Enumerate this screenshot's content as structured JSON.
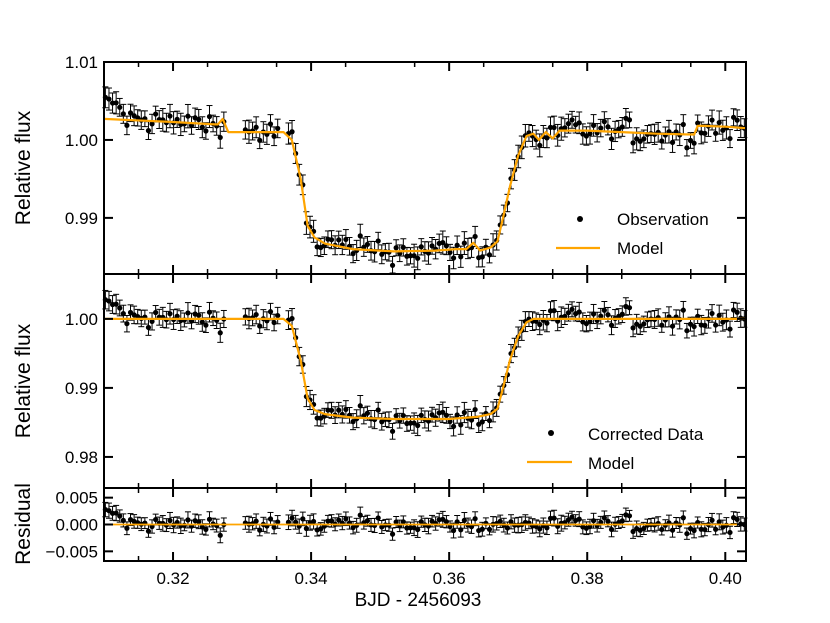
{
  "x_axis": {
    "label": "BJD - 2456093",
    "range": [
      0.31,
      0.403
    ],
    "ticks": [
      0.32,
      0.34,
      0.36,
      0.38,
      0.4
    ],
    "tick_labels": [
      "0.32",
      "0.34",
      "0.36",
      "0.38",
      "0.40"
    ]
  },
  "chart_data": [
    {
      "type": "scatter",
      "panel": "top",
      "ylabel": "Relative flux",
      "ylim": [
        0.9828,
        1.01
      ],
      "yticks": [
        0.99,
        1.0,
        1.01
      ],
      "ytick_labels": [
        "0.99",
        "1.00",
        "1.01"
      ],
      "legend": [
        "Observation",
        "Model"
      ],
      "legend_position": "lower-right",
      "model": {
        "name": "Model",
        "color": "#FFA500",
        "x": [
          0.31,
          0.32,
          0.326,
          0.3265,
          0.3272,
          0.328,
          0.33,
          0.336,
          0.3372,
          0.3385,
          0.3395,
          0.3405,
          0.342,
          0.346,
          0.352,
          0.358,
          0.361,
          0.3625,
          0.3635,
          0.3645,
          0.366,
          0.367,
          0.3678,
          0.3688,
          0.37,
          0.3712,
          0.3722,
          0.373,
          0.374,
          0.375,
          0.376,
          0.38,
          0.385,
          0.39,
          0.395,
          0.3955,
          0.396,
          0.397,
          0.4,
          0.403
        ],
        "y": [
          1.0027,
          1.0023,
          1.002,
          1.002,
          1.0027,
          1.001,
          1.001,
          1.001,
          1.0,
          0.995,
          0.989,
          0.9875,
          0.9867,
          0.986,
          0.9857,
          0.9858,
          0.986,
          0.986,
          0.9868,
          0.9858,
          0.9862,
          0.987,
          0.99,
          0.994,
          0.998,
          1.0005,
          1.0008,
          1.0,
          1.001,
          1.0002,
          1.0012,
          1.0012,
          1.001,
          1.0008,
          1.0007,
          1.0007,
          1.0018,
          1.0018,
          1.0017,
          1.0015
        ]
      }
    },
    {
      "type": "scatter",
      "panel": "middle",
      "ylabel": "Relative flux",
      "ylim": [
        0.9755,
        1.0065
      ],
      "yticks": [
        0.98,
        0.99,
        1.0
      ],
      "ytick_labels": [
        "0.98",
        "0.99",
        "1.00"
      ],
      "legend": [
        "Corrected Data",
        "Model"
      ],
      "legend_position": "lower-right",
      "model": {
        "name": "Model",
        "color": "#FFA500",
        "x": [
          0.31,
          0.32,
          0.336,
          0.3372,
          0.3385,
          0.3395,
          0.3405,
          0.342,
          0.346,
          0.352,
          0.36,
          0.364,
          0.366,
          0.367,
          0.3678,
          0.3688,
          0.37,
          0.3712,
          0.3722,
          0.38,
          0.39,
          0.403
        ],
        "y": [
          1.0,
          1.0,
          1.0,
          0.999,
          0.994,
          0.9885,
          0.9868,
          0.9862,
          0.9857,
          0.9855,
          0.9855,
          0.9858,
          0.9862,
          0.987,
          0.99,
          0.994,
          0.9975,
          0.9995,
          1.0,
          1.0,
          1.0,
          1.0
        ]
      }
    },
    {
      "type": "scatter",
      "panel": "bottom",
      "ylabel": "Residual",
      "ylim": [
        -0.0068,
        0.0068
      ],
      "yticks": [
        -0.005,
        0.0,
        0.005
      ],
      "ytick_labels": [
        "−0.005",
        "0.000",
        "0.005"
      ],
      "legend": []
    }
  ],
  "colors": {
    "model": "#FFA500",
    "data": "#000000",
    "axes": "#000000",
    "background": "#ffffff"
  }
}
